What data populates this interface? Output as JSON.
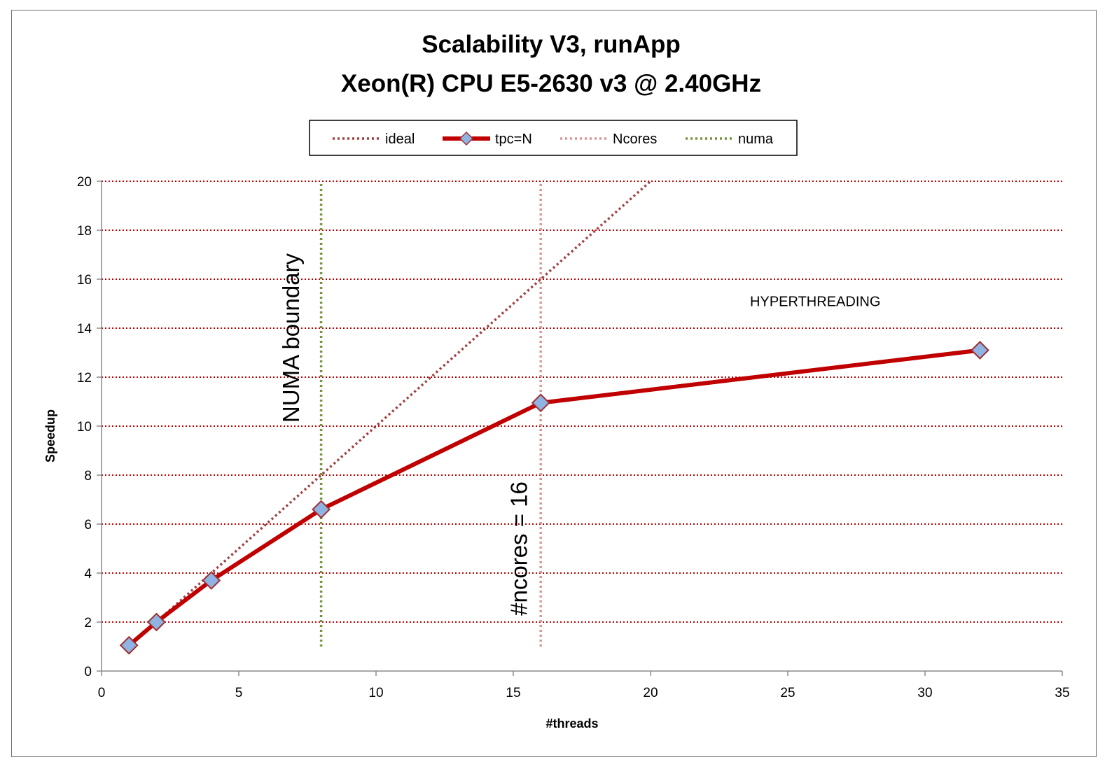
{
  "chart_data": {
    "type": "line",
    "title": [
      "Scalability V3, runApp",
      "Xeon(R) CPU E5-2630 v3 @ 2.40GHz"
    ],
    "xlabel": "#threads",
    "ylabel": "Speedup",
    "xlim": [
      0,
      35
    ],
    "ylim": [
      0,
      20
    ],
    "xticks": [
      0,
      5,
      10,
      15,
      20,
      25,
      30,
      35
    ],
    "yticks": [
      0,
      2,
      4,
      6,
      8,
      10,
      12,
      14,
      16,
      18,
      20
    ],
    "grid": "horizontal",
    "legend_position": "top",
    "series": [
      {
        "name": "ideal",
        "style": "dotted",
        "color": "#a04040",
        "x": [
          1,
          20
        ],
        "y": [
          1,
          20
        ]
      },
      {
        "name": "tpc=N",
        "style": "solid-markers",
        "color": "#c00000",
        "marker_color": "#8fb4e3",
        "x": [
          1,
          2,
          4,
          8,
          16,
          32
        ],
        "y": [
          1.05,
          2.0,
          3.7,
          6.6,
          10.95,
          13.1
        ]
      },
      {
        "name": "Ncores",
        "style": "dotted",
        "color": "#d99694",
        "x": [
          16,
          16
        ],
        "y": [
          1,
          20
        ]
      },
      {
        "name": "numa",
        "style": "dotted",
        "color": "#77933c",
        "x": [
          8,
          8
        ],
        "y": [
          1,
          20
        ]
      }
    ],
    "annotations": [
      {
        "text": "NUMA boundary",
        "x": 7.2,
        "y": 13.6,
        "rotation": -90
      },
      {
        "text": "#ncores = 16",
        "x": 15.5,
        "y": 5.0,
        "rotation": -90
      },
      {
        "text": "HYPERTHREADING",
        "x": 26,
        "y": 14.9,
        "rotation": 0
      }
    ]
  }
}
